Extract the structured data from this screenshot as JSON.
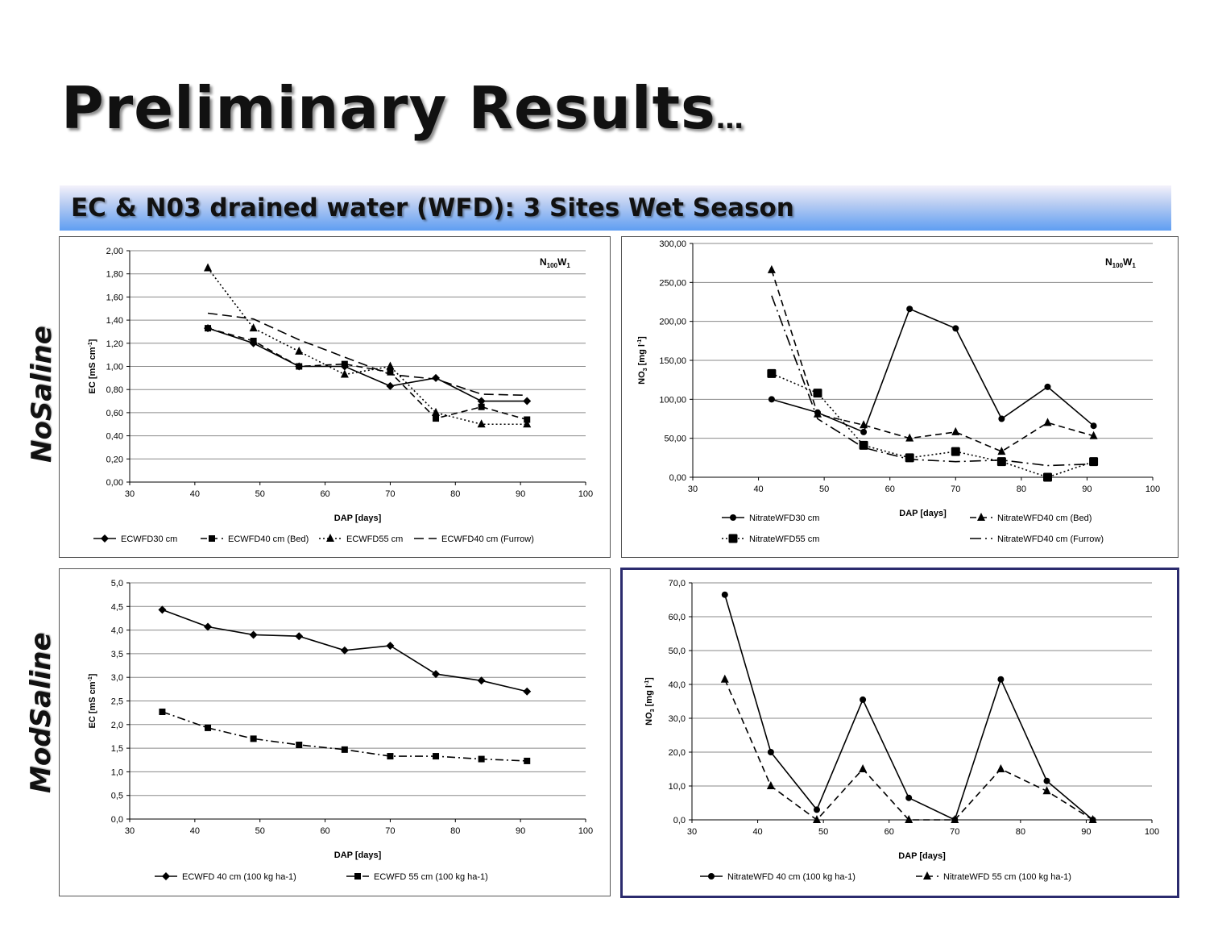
{
  "slide": {
    "title": "Preliminary Results",
    "title_ellipsis": "…",
    "subtitle": "EC & N03 drained water (WFD): 3 Sites Wet Season",
    "row_labels": [
      "NoSaline",
      "ModSaline"
    ]
  },
  "chart_data": [
    {
      "type": "line",
      "annotation": "N100W1",
      "xlabel": "DAP [days]",
      "ylabel": "EC [mS cm-1]",
      "xlim": [
        30,
        100
      ],
      "ylim": [
        0,
        2
      ],
      "ystep": 0.2,
      "ydecimals": 2,
      "grid": true,
      "legend": "bottom",
      "series": [
        {
          "name": "ECWFD30 cm",
          "x": [
            42,
            49,
            56,
            63,
            70,
            77,
            84,
            91
          ],
          "y": [
            1.33,
            1.2,
            1.0,
            1.0,
            0.83,
            0.9,
            0.7,
            0.7
          ],
          "marker": "diamond",
          "dash": ""
        },
        {
          "name": "ECWFD40 cm (Bed)",
          "x": [
            42,
            49,
            56,
            63,
            70,
            77,
            84,
            91
          ],
          "y": [
            1.33,
            1.22,
            1.0,
            1.02,
            0.95,
            0.55,
            0.65,
            0.54
          ],
          "marker": "square",
          "dash": "8,5"
        },
        {
          "name": "ECWFD55 cm",
          "x": [
            42,
            49,
            56,
            63,
            70,
            77,
            84,
            91
          ],
          "y": [
            1.85,
            1.33,
            1.13,
            0.93,
            1.0,
            0.6,
            0.5,
            0.5
          ],
          "marker": "triangle",
          "dash": "2,3"
        },
        {
          "name": "ECWFD40 cm (Furrow)",
          "x": [
            42,
            49,
            56,
            63,
            70,
            77,
            84,
            91
          ],
          "y": [
            1.46,
            1.41,
            1.23,
            1.08,
            0.93,
            0.89,
            0.76,
            0.75
          ],
          "marker": "none",
          "dash": "12,6"
        }
      ]
    },
    {
      "type": "line",
      "annotation": "N100W1",
      "xlabel": "DAP [days]",
      "ylabel": "NO3 [mg l-1]",
      "xlim": [
        30,
        100
      ],
      "ylim": [
        0,
        300
      ],
      "ystep": 50,
      "ydecimals": 2,
      "grid": true,
      "legend": "bottom",
      "series": [
        {
          "name": "NitrateWFD30 cm",
          "x": [
            42,
            49,
            56,
            63,
            70,
            77,
            84,
            91
          ],
          "y": [
            100,
            83,
            58,
            216,
            191,
            75,
            116,
            66
          ],
          "marker": "circle",
          "dash": ""
        },
        {
          "name": "NitrateWFD40 cm (Bed)",
          "x": [
            42,
            49,
            56,
            63,
            70,
            77,
            84,
            91
          ],
          "y": [
            266,
            81,
            67,
            50,
            58,
            33,
            70,
            53
          ],
          "marker": "triangle",
          "dash": "8,5"
        },
        {
          "name": "NitrateWFD55 cm",
          "x": [
            42,
            49,
            56,
            63,
            70,
            77,
            84,
            91
          ],
          "y": [
            133,
            108,
            41,
            25,
            33,
            20,
            0,
            20
          ],
          "marker": "bigsquare",
          "dash": "2,3"
        },
        {
          "name": "NitrateWFD40 cm (Furrow)",
          "x": [
            42,
            49,
            56,
            63,
            70,
            77,
            84,
            91
          ],
          "y": [
            233,
            75,
            38,
            23,
            20,
            22,
            15,
            17
          ],
          "marker": "none",
          "dash": "14,5,2,5"
        }
      ]
    },
    {
      "type": "line",
      "xlabel": "DAP [days]",
      "ylabel": "EC [mS cm-1]",
      "xlim": [
        30,
        100
      ],
      "ylim": [
        0,
        5
      ],
      "ystep": 0.5,
      "ydecimals": 1,
      "grid": true,
      "legend": "bottom",
      "series": [
        {
          "name": "ECWFD 40 cm (100 kg ha-1)",
          "x": [
            35,
            42,
            49,
            56,
            63,
            70,
            77,
            84,
            91
          ],
          "y": [
            4.43,
            4.07,
            3.9,
            3.87,
            3.57,
            3.67,
            3.07,
            2.93,
            2.7
          ],
          "marker": "diamond",
          "dash": ""
        },
        {
          "name": "ECWFD 55 cm (100 kg ha-1)",
          "x": [
            35,
            42,
            49,
            56,
            63,
            70,
            77,
            84,
            91
          ],
          "y": [
            2.27,
            1.93,
            1.7,
            1.57,
            1.47,
            1.33,
            1.33,
            1.27,
            1.23
          ],
          "marker": "square",
          "dash": "10,4,2,4"
        }
      ]
    },
    {
      "type": "line",
      "xlabel": "DAP [days]",
      "ylabel": "NO3 [mg l-1]",
      "xlim": [
        30,
        100
      ],
      "ylim": [
        0,
        70
      ],
      "ystep": 10,
      "ydecimals": 1,
      "grid": true,
      "legend": "bottom",
      "series": [
        {
          "name": "NitrateWFD 40 cm (100 kg ha-1)",
          "x": [
            35,
            42,
            49,
            56,
            63,
            70,
            77,
            84,
            91
          ],
          "y": [
            66.5,
            20,
            3,
            35.5,
            6.5,
            0,
            41.5,
            11.5,
            0
          ],
          "marker": "circle",
          "dash": ""
        },
        {
          "name": "NitrateWFD 55 cm (100 kg ha-1)",
          "x": [
            35,
            42,
            49,
            56,
            63,
            70,
            77,
            84,
            91
          ],
          "y": [
            41.5,
            10,
            0,
            15,
            0,
            0,
            15,
            8.5,
            0
          ],
          "marker": "triangle",
          "dash": "8,5"
        }
      ]
    }
  ]
}
